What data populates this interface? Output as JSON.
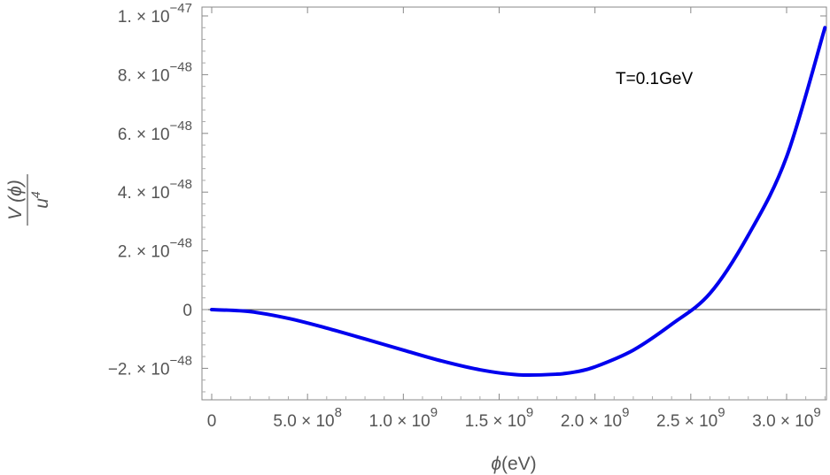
{
  "chart_data": {
    "type": "line",
    "annotation": "T=0.1GeV",
    "xlabel": {
      "symbol": "ϕ",
      "unit": "(eV)"
    },
    "ylabel": {
      "numerator": "V (ϕ)",
      "denominator_base": "u",
      "denominator_exp": "4"
    },
    "xlim": [
      0,
      3300000000.0
    ],
    "ylim": [
      -2.9e-48,
      1.02e-47
    ],
    "grid": false,
    "zero_line": true,
    "x_ticks": [
      {
        "value": 0,
        "mantissa": "0",
        "exp": ""
      },
      {
        "value": 500000000.0,
        "mantissa": "5.0 × 10",
        "exp": "8"
      },
      {
        "value": 1000000000.0,
        "mantissa": "1.0 × 10",
        "exp": "9"
      },
      {
        "value": 1500000000.0,
        "mantissa": "1.5 × 10",
        "exp": "9"
      },
      {
        "value": 2000000000.0,
        "mantissa": "2.0 × 10",
        "exp": "9"
      },
      {
        "value": 2500000000.0,
        "mantissa": "2.5 × 10",
        "exp": "9"
      },
      {
        "value": 3000000000.0,
        "mantissa": "3.0 × 10",
        "exp": "9"
      }
    ],
    "y_ticks": [
      {
        "value": -2e-48,
        "mantissa": "−2. × 10",
        "exp": "−48"
      },
      {
        "value": 0,
        "mantissa": "0",
        "exp": ""
      },
      {
        "value": 2e-48,
        "mantissa": "2. × 10",
        "exp": "−48"
      },
      {
        "value": 4e-48,
        "mantissa": "4. × 10",
        "exp": "−48"
      },
      {
        "value": 6e-48,
        "mantissa": "6. × 10",
        "exp": "−48"
      },
      {
        "value": 8e-48,
        "mantissa": "8. × 10",
        "exp": "−48"
      },
      {
        "value": 1e-47,
        "mantissa": "1. × 10",
        "exp": "−47"
      }
    ],
    "series": [
      {
        "color": "#0000ee",
        "x": [
          0,
          200000000.0,
          400000000.0,
          600000000.0,
          800000000.0,
          1000000000.0,
          1200000000.0,
          1400000000.0,
          1600000000.0,
          1800000000.0,
          1900000000.0,
          2000000000.0,
          2200000000.0,
          2400000000.0,
          2600000000.0,
          2800000000.0,
          3000000000.0,
          3200000000.0
        ],
        "y": [
          0,
          -7e-50,
          -3e-49,
          -6.3e-49,
          -1e-48,
          -1.38e-48,
          -1.75e-48,
          -2.05e-48,
          -2.22e-48,
          -2.2e-48,
          -2.12e-48,
          -1.95e-48,
          -1.38e-48,
          -5e-49,
          5.5e-49,
          2.53e-48,
          5.2e-48,
          9.6e-48
        ]
      }
    ]
  }
}
